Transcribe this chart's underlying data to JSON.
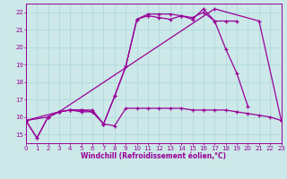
{
  "xlabel": "Windchill (Refroidissement éolien,°C)",
  "bg_color": "#cce8e8",
  "line_color": "#990099",
  "grid_color": "#aad8d8",
  "xlim": [
    0,
    23
  ],
  "ylim": [
    14.5,
    22.5
  ],
  "xticks": [
    0,
    1,
    2,
    3,
    4,
    5,
    6,
    7,
    8,
    9,
    10,
    11,
    12,
    13,
    14,
    15,
    16,
    17,
    18,
    19,
    20,
    21,
    22,
    23
  ],
  "yticks": [
    15,
    16,
    17,
    18,
    19,
    20,
    21,
    22
  ],
  "line1_x": [
    0,
    1,
    2,
    3,
    4,
    5,
    6,
    7,
    8,
    9,
    10,
    11,
    12,
    13,
    14,
    15,
    16,
    17,
    18,
    19
  ],
  "line1_y": [
    15.8,
    14.8,
    16.0,
    16.3,
    16.4,
    16.4,
    16.3,
    15.6,
    17.2,
    18.9,
    21.6,
    21.8,
    21.7,
    21.6,
    21.8,
    21.7,
    22.0,
    21.5,
    21.5,
    21.5
  ],
  "line2_x": [
    0,
    1,
    2,
    3,
    4,
    5,
    6,
    7,
    8,
    9,
    10,
    11,
    12,
    13,
    14,
    15,
    16,
    17,
    18,
    19,
    20
  ],
  "line2_y": [
    15.8,
    14.8,
    16.0,
    16.3,
    16.4,
    16.3,
    16.3,
    15.6,
    17.2,
    18.9,
    21.6,
    21.9,
    21.9,
    21.9,
    21.8,
    21.6,
    22.2,
    21.5,
    19.9,
    18.5,
    16.6
  ],
  "line3_x": [
    0,
    2,
    3,
    4,
    5,
    6,
    7,
    8,
    9,
    10,
    11,
    12,
    13,
    14,
    15,
    16,
    17,
    18,
    19,
    20,
    21,
    22,
    23
  ],
  "line3_y": [
    15.8,
    16.0,
    16.3,
    16.4,
    16.4,
    16.4,
    15.6,
    15.5,
    16.5,
    16.5,
    16.5,
    16.5,
    16.5,
    16.5,
    16.4,
    16.4,
    16.4,
    16.4,
    16.3,
    16.2,
    16.1,
    16.0,
    15.8
  ],
  "line4_x": [
    0,
    3,
    17,
    21,
    23
  ],
  "line4_y": [
    15.8,
    16.3,
    22.2,
    21.5,
    15.8
  ]
}
